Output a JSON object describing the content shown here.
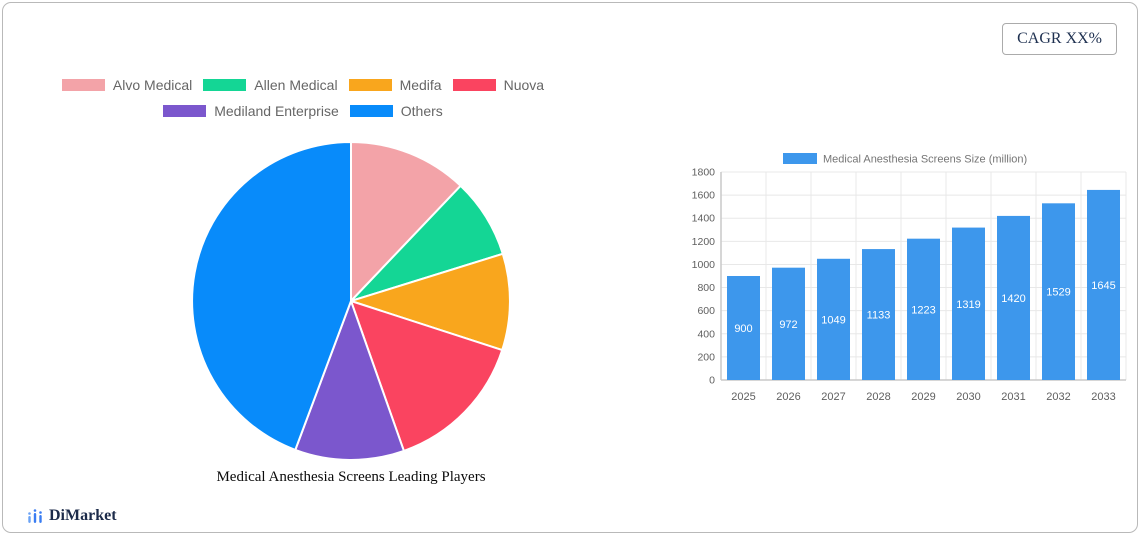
{
  "card": {
    "cagr_label": "CAGR XX%"
  },
  "brand": {
    "name": "DiMarket",
    "icon": "bar-chart-icon",
    "icon_color": "#3a7df2"
  },
  "chart_data": [
    {
      "type": "pie",
      "title": "Medical Anesthesia Screens Leading Players",
      "labels": [
        "Alvo Medical",
        "Allen Medical",
        "Medifa",
        "Nuova",
        "Mediland Enterprise",
        "Others"
      ],
      "values": [
        12.1,
        8.1,
        9.8,
        14.6,
        11.1,
        44.3
      ],
      "unit": "percent",
      "colors": [
        "#f3a3a8",
        "#14d695",
        "#f9a61d",
        "#fa4460",
        "#7b57cd",
        "#088bfa"
      ],
      "legend_rows": [
        [
          0,
          1,
          2,
          3
        ],
        [
          4,
          5
        ]
      ],
      "legend_position": "top",
      "start_angle_deg": 0,
      "direction": "clockwise"
    },
    {
      "type": "bar",
      "legend": "Medical Anesthesia Screens Size (million)",
      "categories": [
        "2025",
        "2026",
        "2027",
        "2028",
        "2029",
        "2030",
        "2031",
        "2032",
        "2033"
      ],
      "values": [
        900,
        972,
        1049,
        1133,
        1223,
        1319,
        1420,
        1529,
        1645
      ],
      "bar_color": "#3d97ec",
      "value_label_color": "#ffffff",
      "ylim": [
        0,
        1800
      ],
      "ytick_step": 200,
      "grid": true,
      "legend_position": "top"
    }
  ]
}
